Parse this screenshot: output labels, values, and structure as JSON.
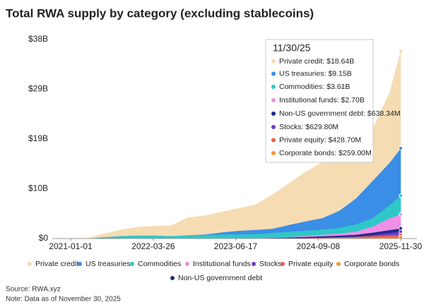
{
  "chart_data": {
    "type": "stacked_area",
    "title": "Total RWA supply by category (excluding stablecoins)",
    "source": "Source: RWA.xyz",
    "note": "Note: Data as of November 30, 2025",
    "x": [
      "2021-01-01",
      "2021-04-01",
      "2021-07-01",
      "2021-10-01",
      "2022-01-01",
      "2022-04-01",
      "2022-07-01",
      "2022-10-01",
      "2023-01-01",
      "2023-04-01",
      "2023-07-01",
      "2023-10-01",
      "2024-01-01",
      "2024-04-01",
      "2024-07-01",
      "2024-10-01",
      "2025-01-01",
      "2025-04-01",
      "2025-07-01",
      "2025-10-01",
      "2025-11-30"
    ],
    "xlim": [
      "2021-01-01",
      "2025-11-30"
    ],
    "xticks": [
      "2021-01-01",
      "2022-03-26",
      "2023-06-17",
      "2024-09-08",
      "2025-11-30"
    ],
    "ylim": [
      0,
      38.4
    ],
    "yticks": [
      {
        "value": 0,
        "label": "$0"
      },
      {
        "value": 9.6,
        "label": "$10B"
      },
      {
        "value": 19.2,
        "label": "$19B"
      },
      {
        "value": 28.8,
        "label": "$29B"
      },
      {
        "value": 38.4,
        "label": "$38B"
      }
    ],
    "series": [
      {
        "name": "Private credit",
        "color": "#f6dcb2",
        "values": [
          0,
          0.1,
          0.6,
          1.2,
          1.6,
          1.8,
          2.0,
          3.4,
          3.6,
          3.9,
          4.3,
          4.8,
          6.5,
          8.0,
          9.5,
          10.8,
          10.3,
          9.5,
          10.0,
          13.5,
          18.64
        ]
      },
      {
        "name": "US treasuries",
        "color": "#3a8ee6",
        "values": [
          0,
          0,
          0,
          0,
          0,
          0,
          0,
          0.05,
          0.1,
          0.4,
          0.7,
          0.8,
          0.8,
          1.3,
          1.8,
          2.2,
          3.3,
          5.0,
          7.2,
          8.2,
          9.15
        ]
      },
      {
        "name": "Commodities",
        "color": "#2ec8c8",
        "values": [
          0,
          0,
          0.3,
          0.5,
          0.6,
          0.6,
          0.5,
          0.6,
          0.7,
          0.8,
          0.8,
          0.8,
          0.9,
          1.0,
          1.0,
          1.0,
          1.1,
          1.4,
          1.6,
          2.5,
          3.61
        ]
      },
      {
        "name": "Institutional funds",
        "color": "#ee8fe8",
        "values": [
          0,
          0,
          0,
          0,
          0,
          0,
          0,
          0,
          0,
          0,
          0,
          0,
          0.05,
          0.1,
          0.2,
          0.3,
          0.4,
          0.6,
          1.2,
          2.3,
          2.7
        ]
      },
      {
        "name": "Non-US government debt",
        "color": "#1f2a8a",
        "values": [
          0,
          0,
          0,
          0,
          0,
          0,
          0,
          0,
          0,
          0,
          0,
          0.05,
          0.1,
          0.15,
          0.2,
          0.25,
          0.3,
          0.35,
          0.45,
          0.55,
          0.63834
        ]
      },
      {
        "name": "Stocks",
        "color": "#6a3fc6",
        "values": [
          0,
          0,
          0,
          0,
          0,
          0,
          0,
          0,
          0,
          0,
          0,
          0,
          0,
          0,
          0,
          0.01,
          0.02,
          0.05,
          0.2,
          0.45,
          0.6298
        ]
      },
      {
        "name": "Private equity",
        "color": "#e8604c",
        "values": [
          0,
          0,
          0,
          0,
          0,
          0,
          0,
          0,
          0,
          0,
          0,
          0,
          0,
          0.02,
          0.05,
          0.1,
          0.15,
          0.2,
          0.3,
          0.4,
          0.4287
        ]
      },
      {
        "name": "Corporate bonds",
        "color": "#f0963a",
        "values": [
          0,
          0,
          0,
          0,
          0,
          0,
          0,
          0,
          0,
          0,
          0.02,
          0.03,
          0.05,
          0.06,
          0.08,
          0.1,
          0.12,
          0.15,
          0.2,
          0.25,
          0.259
        ]
      }
    ],
    "tooltip": {
      "title": "11/30/25",
      "items": [
        "Private credit: $18.64B",
        "US treasuries: $9.15B",
        "Commodities: $3.61B",
        "Institutional funds: $2.70B",
        "Non-US government debt: $638.34M",
        "Stocks: $629.80M",
        "Private equity: $428.70M",
        "Corporate bonds: $259.00M"
      ]
    }
  }
}
